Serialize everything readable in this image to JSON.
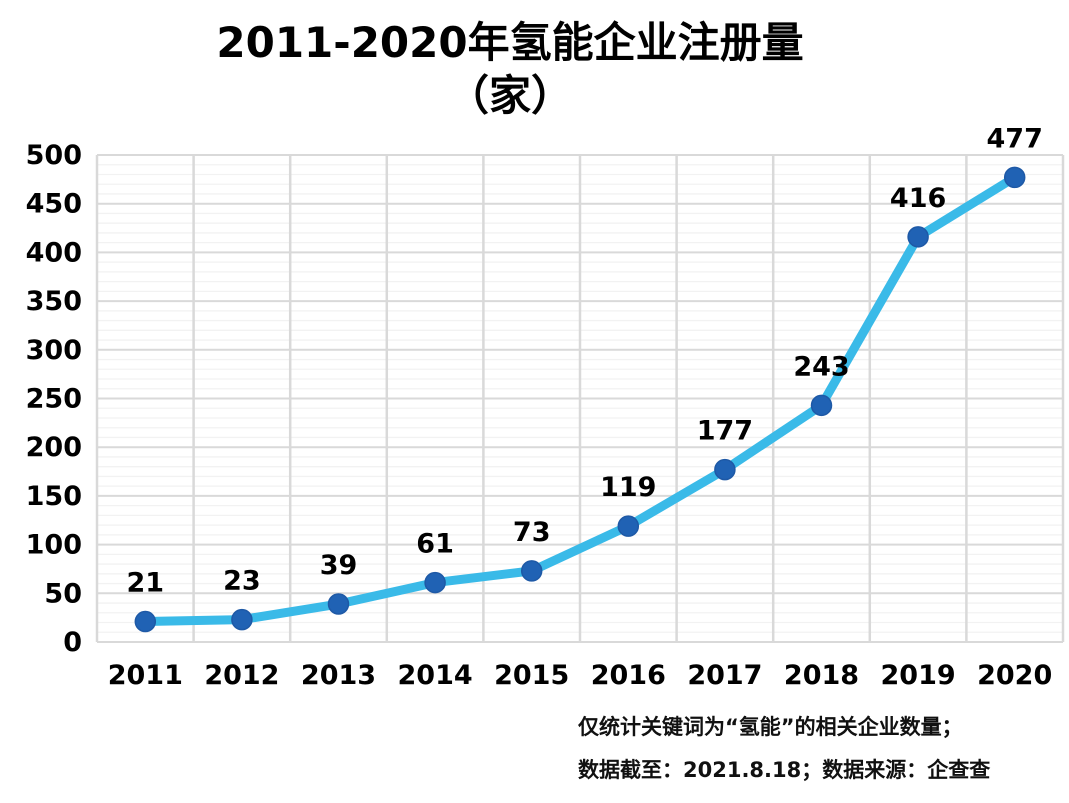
{
  "title": {
    "line1": "2011-2020年氢能企业注册量",
    "line2": "（家）"
  },
  "chart_data": {
    "type": "line",
    "title": "2011-2020年氢能企业注册量（家）",
    "categories": [
      "2011",
      "2012",
      "2013",
      "2014",
      "2015",
      "2016",
      "2017",
      "2018",
      "2019",
      "2020"
    ],
    "values": [
      21,
      23,
      39,
      61,
      73,
      119,
      177,
      243,
      416,
      477
    ],
    "data_labels": [
      "21",
      "23",
      "39",
      "61",
      "73",
      "119",
      "177",
      "243",
      "416",
      "477"
    ],
    "xlabel": "",
    "ylabel": "",
    "ylim": [
      0,
      500
    ],
    "ytick_step": 50,
    "yticks": [
      0,
      50,
      100,
      150,
      200,
      250,
      300,
      350,
      400,
      450,
      500
    ],
    "minor_grid_step": 10,
    "grid": true,
    "legend": "none",
    "colors": {
      "line": "#3ABAE8",
      "marker": "#2062B4",
      "marker_edge": "#1E59A6",
      "major_grid": "#D9D9D9",
      "minor_grid": "#F2F2F2",
      "vertical_grid": "#D9D9D9",
      "text": "#000000"
    }
  },
  "footnotes": {
    "line1": "仅统计关键词为“氢能”的相关企业数量；",
    "line2": "数据截至：2021.8.18；数据来源：企查查"
  }
}
